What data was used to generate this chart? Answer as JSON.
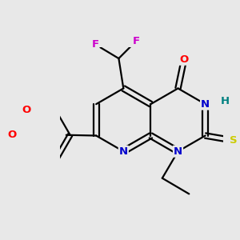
{
  "background_color": "#e8e8e8",
  "bond_color": "#000000",
  "atom_colors": {
    "N": "#0000cc",
    "O": "#ff0000",
    "F": "#cc00cc",
    "S": "#cccc00",
    "H": "#008080",
    "C": "#000000"
  },
  "figsize": [
    3.0,
    3.0
  ],
  "dpi": 100
}
